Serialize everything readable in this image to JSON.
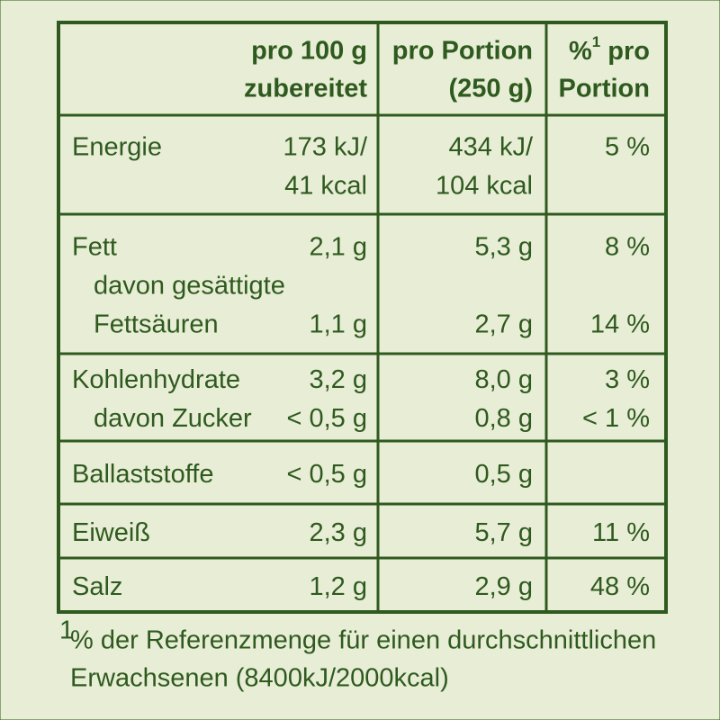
{
  "table": {
    "header": {
      "per100": [
        "pro 100 g",
        "zubereitet"
      ],
      "portion": [
        "pro Portion",
        "(250 g)"
      ],
      "percent": {
        "pre": "%",
        "sup": "1",
        "post": " pro",
        "line2": "Portion"
      }
    },
    "rows": [
      {
        "lines": [
          {
            "label": "Energie",
            "per100": "173 kJ/",
            "portion": "434 kJ/",
            "percent": "5 %"
          },
          {
            "per100": "41 kcal",
            "portion": "104 kcal"
          }
        ]
      },
      {
        "lines": [
          {
            "label": "Fett",
            "per100": "2,1 g",
            "portion": "5,3 g",
            "percent": "8 %"
          },
          {
            "sublabel": "davon gesättigte"
          },
          {
            "sublabel": "Fettsäuren",
            "per100": "1,1 g",
            "portion": "2,7 g",
            "percent": "14 %"
          }
        ]
      },
      {
        "lines": [
          {
            "label": "Kohlenhydrate",
            "per100": "3,2 g",
            "portion": "8,0 g",
            "percent": "3 %"
          },
          {
            "sublabel": "davon Zucker",
            "per100": "< 0,5 g",
            "portion": "0,8 g",
            "percent": "< 1 %"
          }
        ]
      },
      {
        "lines": [
          {
            "label": "Ballaststoffe",
            "per100": "< 0,5 g",
            "portion": "0,5 g"
          }
        ]
      },
      {
        "lines": [
          {
            "label": "Eiweiß",
            "per100": "2,3 g",
            "portion": "5,7 g",
            "percent": "11 %"
          }
        ]
      },
      {
        "lines": [
          {
            "label": "Salz",
            "per100": "1,2 g",
            "portion": "2,9 g",
            "percent": "48 %"
          }
        ]
      }
    ]
  },
  "footnote": {
    "marker": "1",
    "lines": [
      "% der Referenzmenge für einen durchschnittlichen",
      "Erwachsenen (8400kJ/2000kcal)"
    ]
  }
}
